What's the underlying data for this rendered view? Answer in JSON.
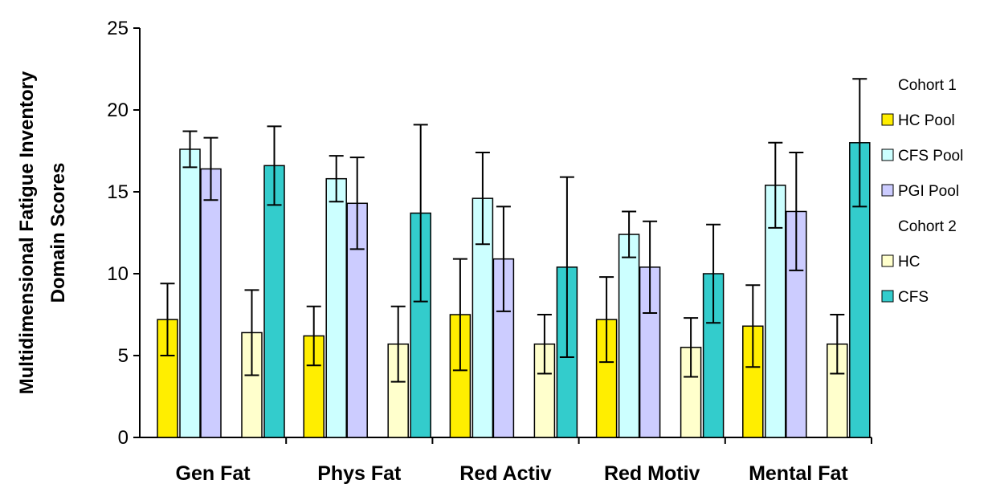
{
  "chart_data": {
    "type": "bar",
    "title": "",
    "ylabel_lines": [
      "Multidimensional Fatigue Inventory",
      "Domain Scores"
    ],
    "xlabel": "",
    "ylim": [
      0,
      25
    ],
    "yticks": [
      0,
      5,
      10,
      15,
      20,
      25
    ],
    "grid": false,
    "legend_position": "right",
    "categories": [
      "Gen Fat",
      "Phys Fat",
      "Red Activ",
      "Red Motiv",
      "Mental Fat"
    ],
    "groups": [
      {
        "name": "Cohort 1",
        "series": [
          {
            "name": "HC Pool",
            "color": "#ffee00",
            "values": [
              7.2,
              6.2,
              7.5,
              7.2,
              6.8
            ],
            "errors": [
              2.2,
              1.8,
              3.4,
              2.6,
              2.5
            ]
          },
          {
            "name": "CFS Pool",
            "color": "#ccffff",
            "values": [
              17.6,
              15.8,
              14.6,
              12.4,
              15.4
            ],
            "errors": [
              1.1,
              1.4,
              2.8,
              1.4,
              2.6
            ]
          },
          {
            "name": "PGI Pool",
            "color": "#ccccff",
            "values": [
              16.4,
              14.3,
              10.9,
              10.4,
              13.8
            ],
            "errors": [
              1.9,
              2.8,
              3.2,
              2.8,
              3.6
            ]
          }
        ]
      },
      {
        "name": "Cohort 2",
        "series": [
          {
            "name": "HC",
            "color": "#ffffcc",
            "values": [
              6.4,
              5.7,
              5.7,
              5.5,
              5.7
            ],
            "errors": [
              2.6,
              2.3,
              1.8,
              1.8,
              1.8
            ]
          },
          {
            "name": "CFS",
            "color": "#33cccc",
            "values": [
              16.6,
              13.7,
              10.4,
              10.0,
              18.0
            ],
            "errors": [
              2.4,
              5.4,
              5.5,
              3.0,
              3.9
            ]
          }
        ]
      }
    ]
  }
}
